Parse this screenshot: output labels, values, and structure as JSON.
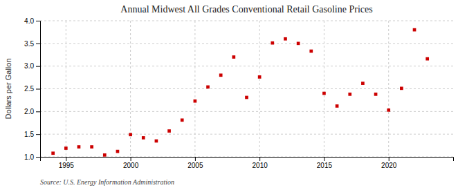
{
  "chart_data": {
    "type": "scatter",
    "title": "Annual Midwest All Grades Conventional Retail Gasoline Prices",
    "y_label": "Dollars per Gallon",
    "annotations": [
      "Source: U.S. Energy Information Administration"
    ],
    "x": [
      1994,
      1995,
      1996,
      1997,
      1998,
      1999,
      2000,
      2001,
      2002,
      2003,
      2004,
      2005,
      2006,
      2007,
      2008,
      2009,
      2010,
      2011,
      2012,
      2013,
      2014,
      2015,
      2016,
      2017,
      2018,
      2019,
      2020,
      2021,
      2022,
      2023
    ],
    "values": [
      1.08,
      1.19,
      1.22,
      1.22,
      1.04,
      1.12,
      1.49,
      1.42,
      1.35,
      1.57,
      1.81,
      2.23,
      2.54,
      2.8,
      3.2,
      2.31,
      2.76,
      3.51,
      3.6,
      3.5,
      3.33,
      2.4,
      2.12,
      2.38,
      2.62,
      2.38,
      2.03,
      2.51,
      3.8,
      3.16
    ],
    "color": "#CC0000",
    "marker": "square",
    "xlim": [
      1993.0,
      2025.0
    ],
    "ylim": [
      1.0,
      4.0
    ],
    "xticks": [
      1995,
      2000,
      2005,
      2010,
      2015,
      2020
    ],
    "yticks": [
      {
        "value": 1.0,
        "label": "1.0"
      },
      1.5,
      {
        "value": 2.0,
        "label": "2.0"
      },
      2.5,
      {
        "value": 3.0,
        "label": "3.0"
      },
      3.5,
      {
        "value": 4.0,
        "label": "4.0"
      }
    ],
    "grid": true
  }
}
